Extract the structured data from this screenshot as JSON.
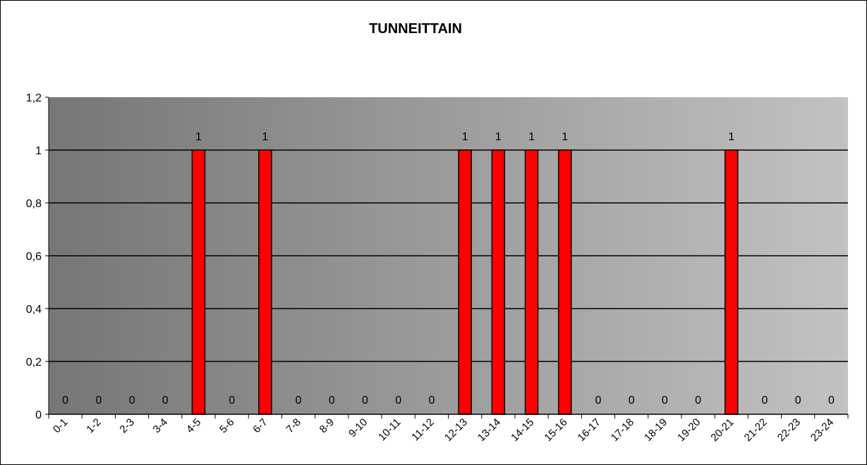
{
  "chart_data": {
    "type": "bar",
    "title": "TUNNEITTAIN",
    "xlabel": "",
    "ylabel": "",
    "categories": [
      "0-1",
      "1-2",
      "2-3",
      "3-4",
      "4-5",
      "5-6",
      "6-7",
      "7-8",
      "8-9",
      "9-10",
      "10-11",
      "11-12",
      "12-13",
      "13-14",
      "14-15",
      "15-16",
      "16-17",
      "17-18",
      "18-19",
      "19-20",
      "20-21",
      "21-22",
      "22-23",
      "23-24"
    ],
    "values": [
      0,
      0,
      0,
      0,
      1,
      0,
      1,
      0,
      0,
      0,
      0,
      0,
      1,
      1,
      1,
      1,
      0,
      0,
      0,
      0,
      1,
      0,
      0,
      0
    ],
    "ylim": [
      0,
      1.2
    ],
    "yticks": [
      "0",
      "0,2",
      "0,4",
      "0,6",
      "0,8",
      "1",
      "1,2"
    ],
    "grid": true,
    "legend": "none",
    "colors": {
      "bar": "#ff0000",
      "bar_outline": "#000000",
      "plot_bg_start": "#767676",
      "plot_bg_end": "#c2c2c2"
    }
  }
}
